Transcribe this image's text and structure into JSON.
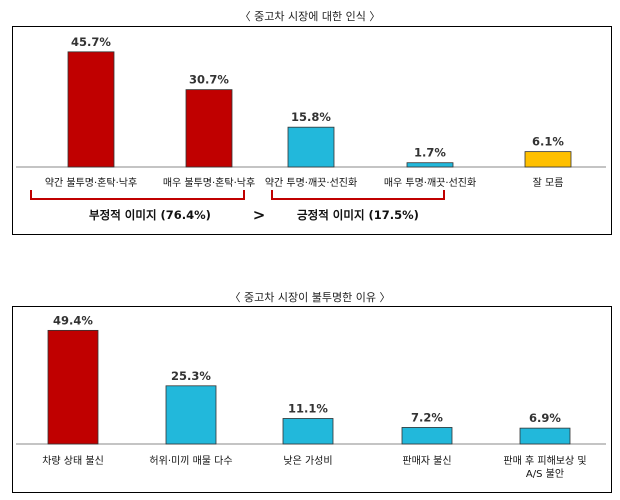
{
  "chart_data": [
    {
      "type": "bar",
      "title": "〈 중고차 시장에 대한 인식 〉",
      "categories": [
        "약간 불투명·혼탁·낙후",
        "매우 불투명·혼탁·낙후",
        "약간 투명·깨끗·선진화",
        "매우 투명·깨끗·선진화",
        "잘 모름"
      ],
      "values": [
        45.7,
        30.7,
        15.8,
        1.7,
        6.1
      ],
      "value_labels": [
        "45.7%",
        "30.7%",
        "15.8%",
        "1.7%",
        "6.1%"
      ],
      "bar_colors": [
        "#c00000",
        "#c00000",
        "#22b8db",
        "#22b8db",
        "#ffc000"
      ],
      "groups": [
        {
          "label": "부정적 이미지 (76.4%)",
          "span": [
            0,
            1
          ]
        },
        {
          "label": "긍정적 이미지 (17.5%)",
          "span": [
            2,
            3
          ]
        }
      ],
      "comparison": ">",
      "ylim": [
        0,
        50
      ]
    },
    {
      "type": "bar",
      "title": "〈 중고차 시장이 불투명한 이유 〉",
      "categories": [
        "차량 상태 불신",
        "허위·미끼 매물 다수",
        "낮은 가성비",
        "판매자 불신",
        "판매 후 피해보상 및 A/S 불안"
      ],
      "values": [
        49.4,
        25.3,
        11.1,
        7.2,
        6.9
      ],
      "value_labels": [
        "49.4%",
        "25.3%",
        "11.1%",
        "7.2%",
        "6.9%"
      ],
      "bar_colors": [
        "#c00000",
        "#22b8db",
        "#22b8db",
        "#22b8db",
        "#22b8db"
      ],
      "ylim": [
        0,
        50
      ]
    }
  ],
  "colors": {
    "negative": "#c00000",
    "positive": "#22b8db",
    "unknown": "#ffc000",
    "bracket": "#c00000"
  }
}
